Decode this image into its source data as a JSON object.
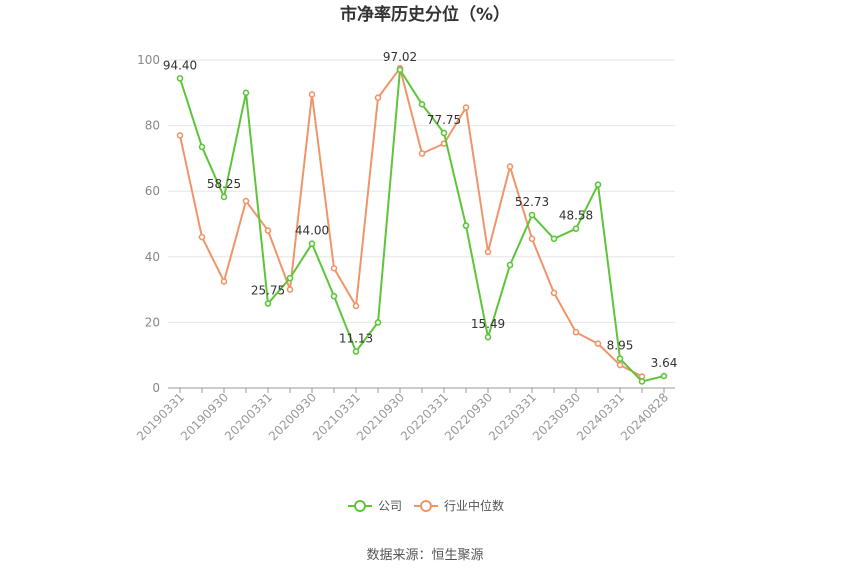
{
  "chart_data": {
    "type": "line",
    "title": "市净率历史分位（%）",
    "ylim": [
      0,
      100
    ],
    "yticks": [
      0,
      20,
      40,
      60,
      80,
      100
    ],
    "x_tick_labels": [
      "20190331",
      "20190930",
      "20200331",
      "20200930",
      "20210331",
      "20210930",
      "20220331",
      "20220930",
      "20230331",
      "20230930",
      "20240331",
      "20240828"
    ],
    "grid": "horizontal",
    "legend_position": "bottom",
    "series": [
      {
        "name": "公司",
        "color": "#5ec53a",
        "values": [
          94.4,
          73.5,
          58.25,
          90.0,
          25.75,
          33.5,
          44.0,
          28.0,
          11.13,
          20.0,
          97.02,
          86.5,
          77.75,
          49.5,
          15.49,
          37.5,
          52.73,
          45.5,
          48.58,
          62.0,
          8.95,
          2.0,
          3.64
        ],
        "data_labels": {
          "0": "94.40",
          "2": "58.25",
          "4": "25.75",
          "6": "44.00",
          "8": "11.13",
          "10": "97.02",
          "12": "77.75",
          "14": "15.49",
          "16": "52.73",
          "18": "48.58",
          "20": "8.95",
          "22": "3.64"
        }
      },
      {
        "name": "行业中位数",
        "color": "#f0956a",
        "values": [
          77.0,
          46.0,
          32.5,
          57.0,
          48.0,
          30.0,
          89.5,
          36.5,
          25.0,
          88.5,
          97.5,
          71.5,
          74.5,
          85.5,
          41.5,
          67.5,
          45.5,
          29.0,
          17.0,
          13.5,
          7.0,
          3.5,
          null
        ]
      }
    ],
    "source": "数据来源：恒生聚源"
  }
}
